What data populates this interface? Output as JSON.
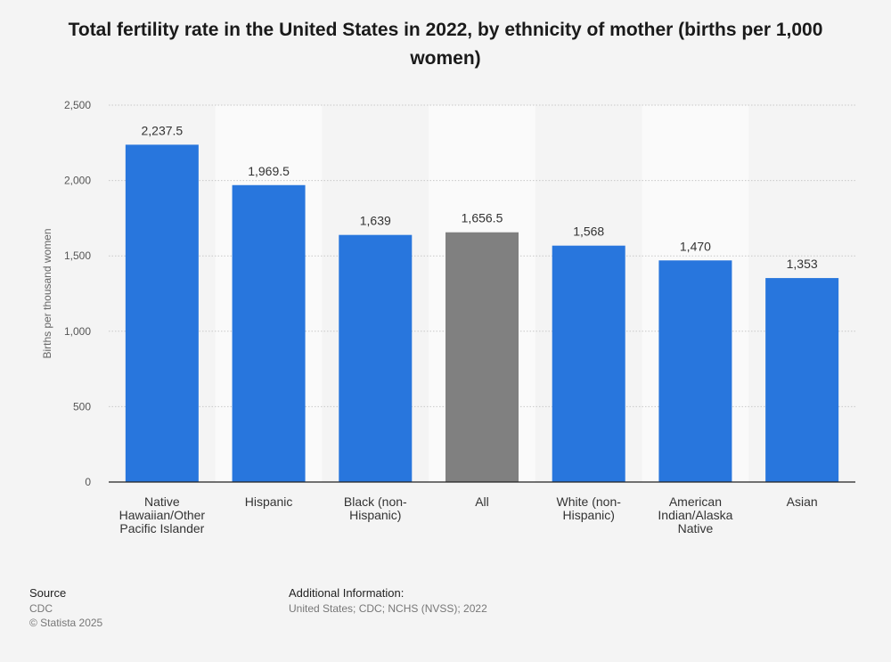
{
  "chart_data": {
    "type": "bar",
    "title": "Total fertility rate in the United States in 2022, by ethnicity of mother (births per 1,000 women)",
    "ylabel": "Births per thousand women",
    "xlabel": "",
    "ylim": [
      0,
      2500
    ],
    "yticks": [
      0,
      500,
      1000,
      1500,
      2000,
      2500
    ],
    "ytick_labels": [
      "0",
      "500",
      "1,000",
      "1,500",
      "2,000",
      "2,500"
    ],
    "categories": [
      [
        "Native",
        "Hawaiian/Other",
        "Pacific Islander"
      ],
      [
        "Hispanic"
      ],
      [
        "Black (non-",
        "Hispanic)"
      ],
      [
        "All"
      ],
      [
        "White (non-",
        "Hispanic)"
      ],
      [
        "American",
        "Indian/Alaska",
        "Native"
      ],
      [
        "Asian"
      ]
    ],
    "values": [
      2237.5,
      1969.5,
      1639,
      1656.5,
      1568,
      1470,
      1353
    ],
    "value_labels": [
      "2,237.5",
      "1,969.5",
      "1,639",
      "1,656.5",
      "1,568",
      "1,470",
      "1,353"
    ],
    "colors": [
      "#2876dd",
      "#2876dd",
      "#2876dd",
      "#808080",
      "#2876dd",
      "#2876dd",
      "#2876dd"
    ],
    "grid": true
  },
  "footer": {
    "source_head": "Source",
    "source_lines": [
      "CDC",
      "© Statista 2025"
    ],
    "info_head": "Additional Information:",
    "info_line": "United States; CDC; NCHS (NVSS); 2022"
  }
}
